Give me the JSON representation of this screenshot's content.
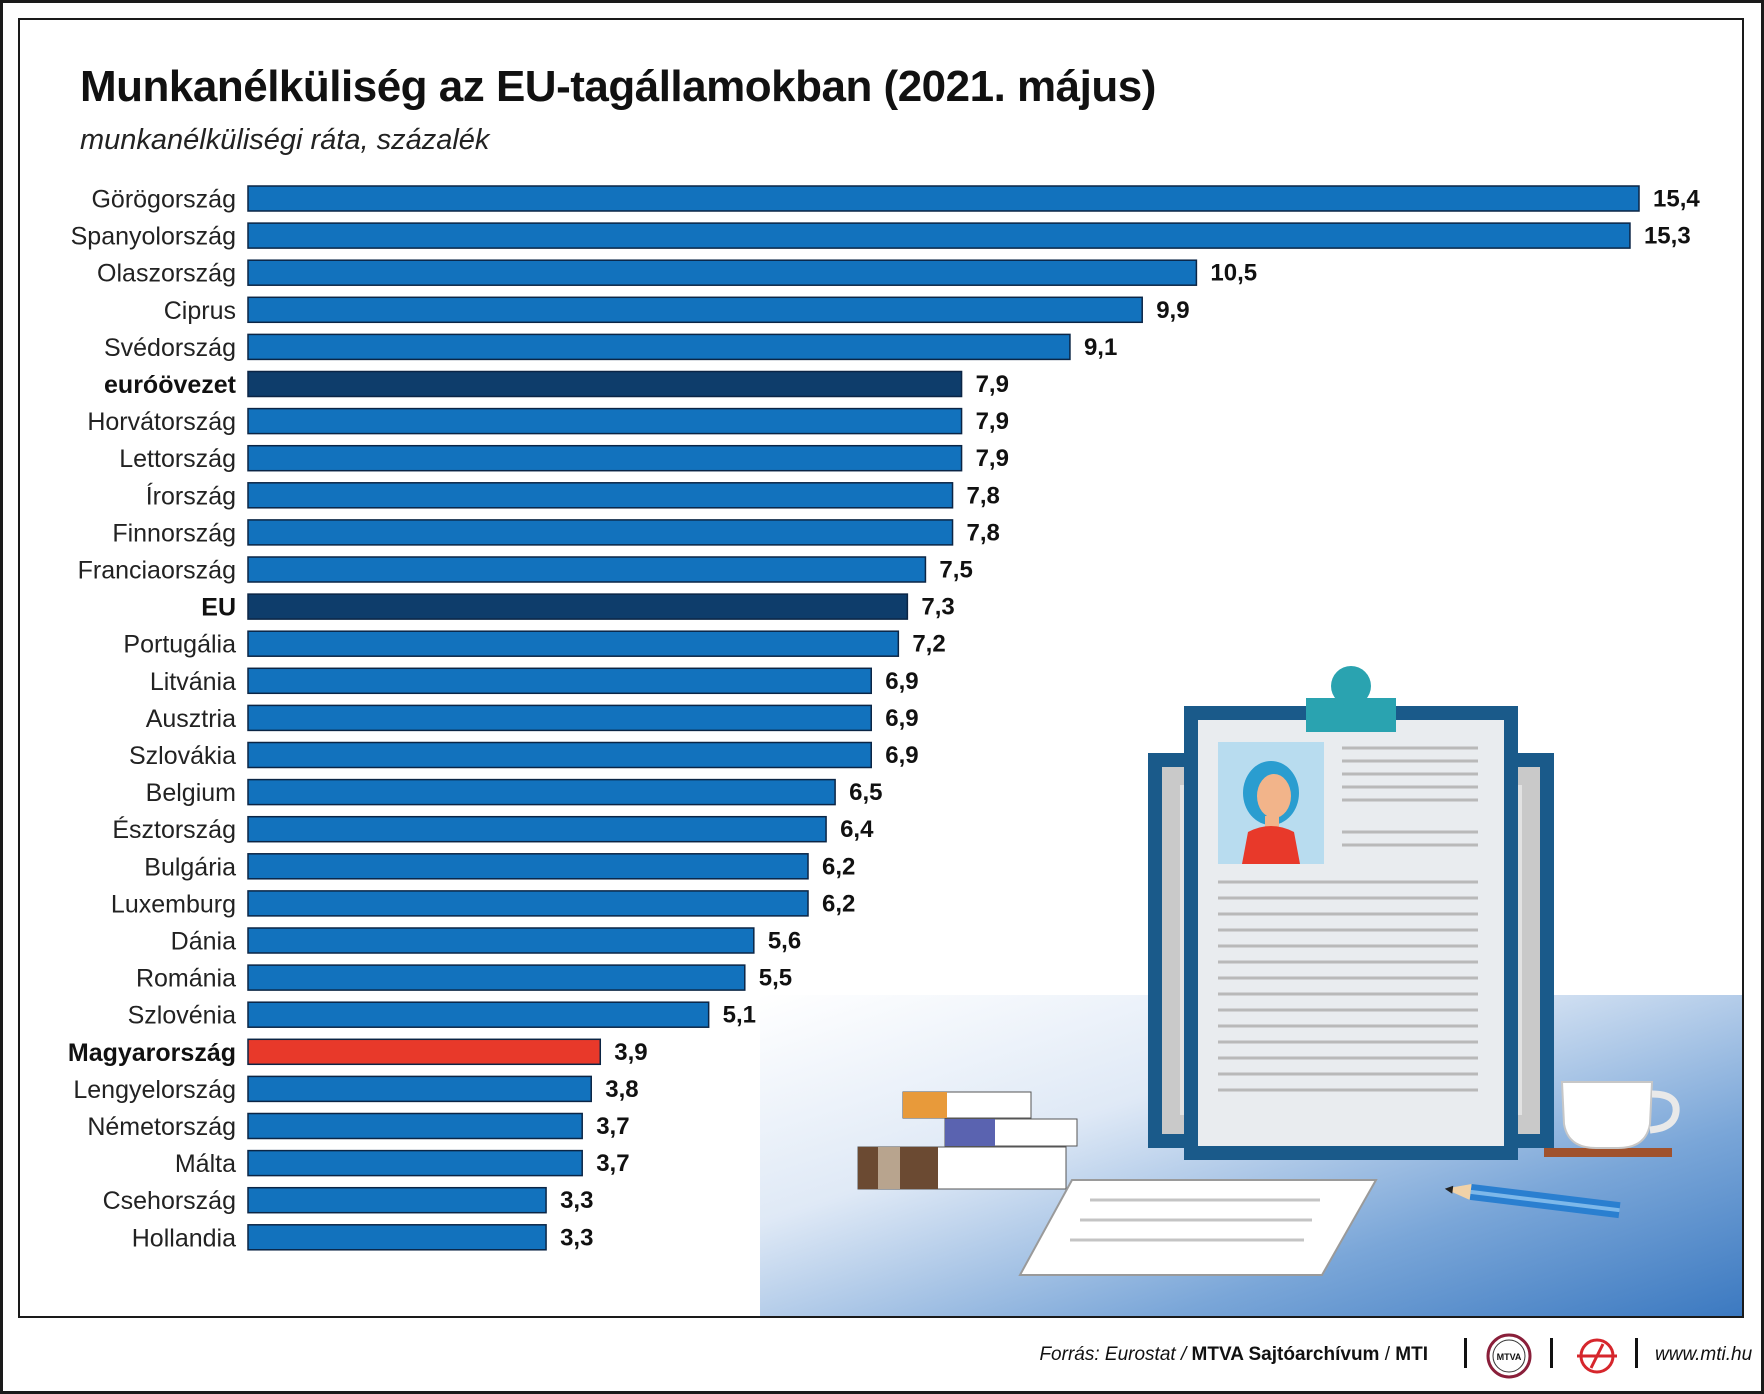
{
  "header": {
    "title": "Munkanélküliség az EU-tagállamokban (2021. május)",
    "subtitle": "munkanélküliségi ráta, százalék"
  },
  "chart_data": {
    "type": "bar",
    "orientation": "horizontal",
    "title": "Munkanélküliség az EU-tagállamokban (2021. május)",
    "subtitle": "munkanélküliségi ráta, százalék",
    "categories": [
      "Görögország",
      "Spanyolország",
      "Olaszország",
      "Ciprus",
      "Svédország",
      "euróövezet",
      "Horvátország",
      "Lettország",
      "Írország",
      "Finnország",
      "Franciaország",
      "EU",
      "Portugália",
      "Litvánia",
      "Ausztria",
      "Szlovákia",
      "Belgium",
      "Észtország",
      "Bulgária",
      "Luxemburg",
      "Dánia",
      "Románia",
      "Szlovénia",
      "Magyarország",
      "Lengyelország",
      "Németország",
      "Málta",
      "Csehország",
      "Hollandia"
    ],
    "values": [
      15.4,
      15.3,
      10.5,
      9.9,
      9.1,
      7.9,
      7.9,
      7.9,
      7.8,
      7.8,
      7.5,
      7.3,
      7.2,
      6.9,
      6.9,
      6.9,
      6.5,
      6.4,
      6.2,
      6.2,
      5.6,
      5.5,
      5.1,
      3.9,
      3.8,
      3.7,
      3.7,
      3.3,
      3.3
    ],
    "value_labels": [
      "15,4",
      "15,3",
      "10,5",
      "9,9",
      "9,1",
      "7,9",
      "7,9",
      "7,9",
      "7,8",
      "7,8",
      "7,5",
      "7,3",
      "7,2",
      "6,9",
      "6,9",
      "6,9",
      "6,5",
      "6,4",
      "6,2",
      "6,2",
      "5,6",
      "5,5",
      "5,1",
      "3,9",
      "3,8",
      "3,7",
      "3,7",
      "3,3",
      "3,3"
    ],
    "bold_categories": [
      "euróövezet",
      "EU",
      "Magyarország"
    ],
    "xlim": [
      0,
      15.4
    ],
    "grid": false,
    "colors": {
      "default": "#1272bd",
      "aggregate": "#0e3d6b",
      "highlight": "#e8392a",
      "bar_border": "#0b2545"
    },
    "highlight": {
      "euróövezet": "aggregate",
      "EU": "aggregate",
      "Magyarország": "highlight"
    }
  },
  "footer": {
    "source_prefix": "Forrás: Eurostat /",
    "source_bold": "MTVA Sajtóarchívum",
    "source_sep": "/",
    "source_mti": "MTI",
    "mtva_logo_text": "MTVA",
    "website": "www.mti.hu"
  },
  "illustration": {
    "icons": [
      "clipboard-icon",
      "resume-photo-icon",
      "book-stack-icon",
      "paper-sheet-icon",
      "coffee-cup-icon",
      "pencil-icon"
    ]
  }
}
